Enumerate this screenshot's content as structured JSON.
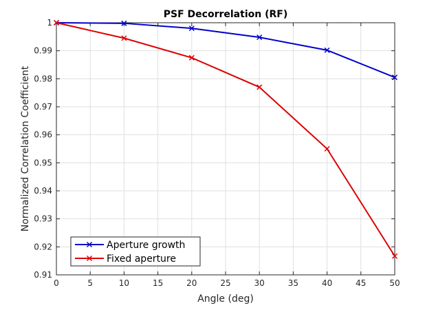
{
  "chart_data": {
    "type": "line",
    "title": "PSF Decorrelation (RF)",
    "xlabel": "Angle (deg)",
    "ylabel": "Normalized Correlation Coefficient",
    "xlim": [
      0,
      50
    ],
    "ylim": [
      0.91,
      1
    ],
    "xticks": [
      0,
      5,
      10,
      15,
      20,
      25,
      30,
      35,
      40,
      45,
      50
    ],
    "yticks": [
      0.91,
      0.92,
      0.93,
      0.94,
      0.95,
      0.96,
      0.97,
      0.98,
      0.99,
      1
    ],
    "xtick_labels": [
      "0",
      "5",
      "10",
      "15",
      "20",
      "25",
      "30",
      "35",
      "40",
      "45",
      "50"
    ],
    "ytick_labels": [
      "0.91",
      "0.92",
      "0.93",
      "0.94",
      "0.95",
      "0.96",
      "0.97",
      "0.98",
      "0.99",
      "1"
    ],
    "grid": true,
    "legend_position": "bottom-left",
    "x": [
      0,
      10,
      20,
      30,
      40,
      50
    ],
    "series": [
      {
        "name": "Aperture growth",
        "color": "#0000cc",
        "marker": "x",
        "values": [
          1.0,
          0.9998,
          0.998,
          0.9948,
          0.9902,
          0.9805
        ]
      },
      {
        "name": "Fixed aperture",
        "color": "#dd0000",
        "marker": "x",
        "values": [
          1.0,
          0.9945,
          0.9875,
          0.977,
          0.955,
          0.9167
        ]
      }
    ]
  }
}
